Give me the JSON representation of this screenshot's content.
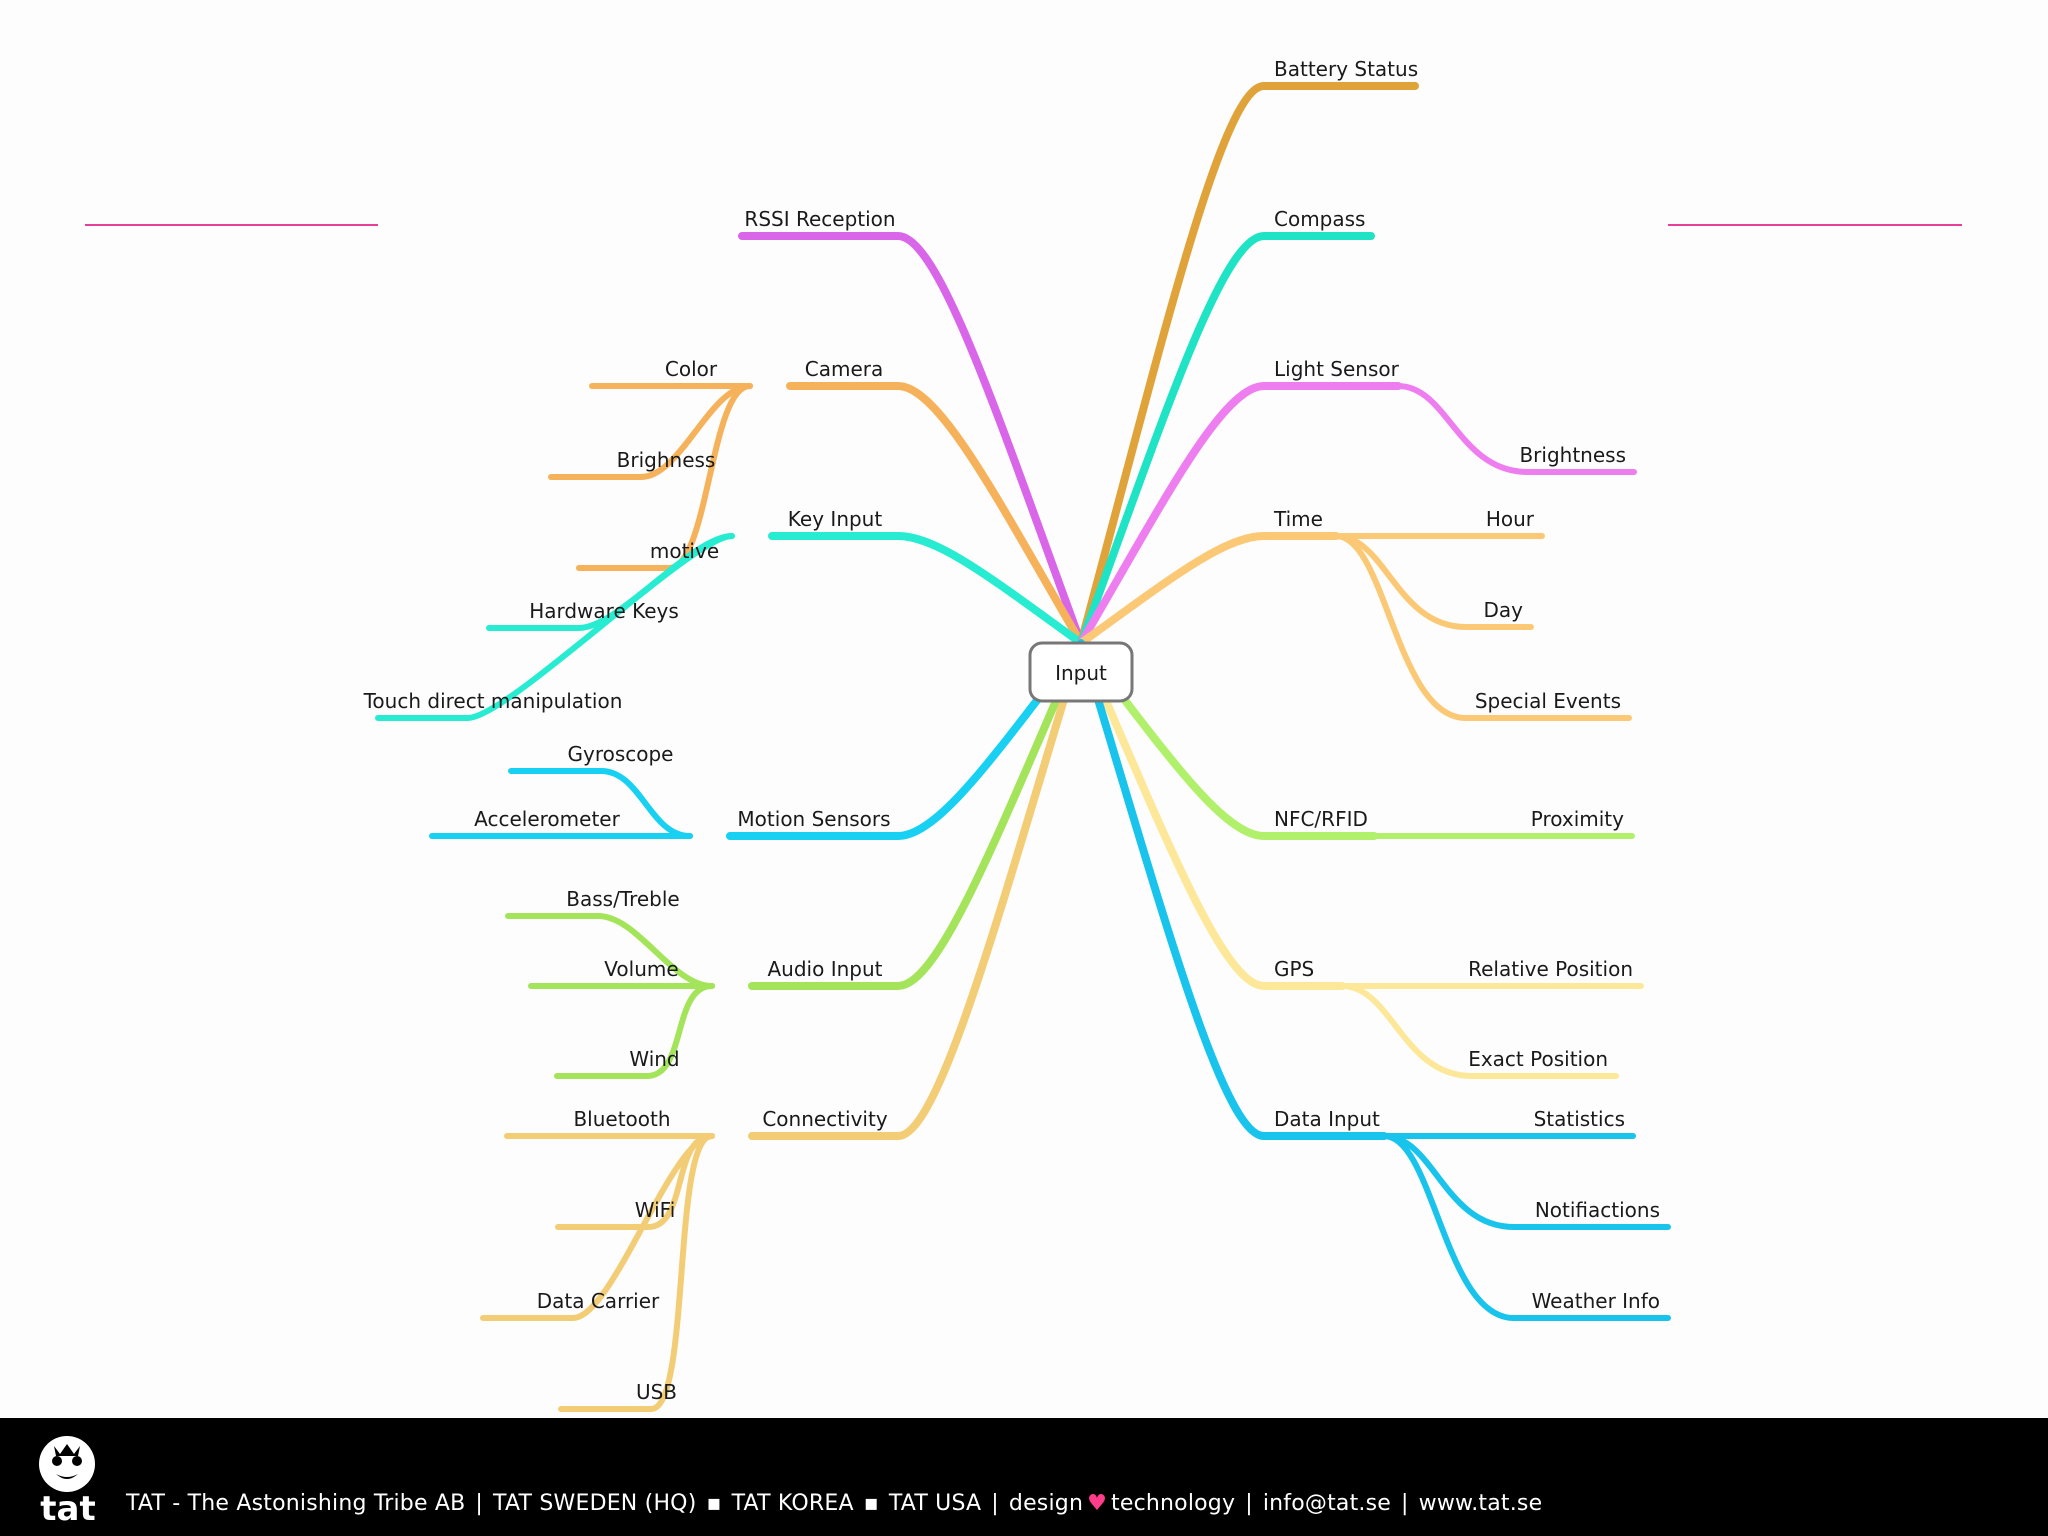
{
  "colors": {
    "pink_rule": "#e8409a",
    "root_border": "#777777",
    "heart": "#ff3d8b"
  },
  "mindmap": {
    "root": "Input",
    "left": [
      {
        "id": "rssi",
        "label": "RSSI Reception",
        "color": "#d966e8",
        "children": []
      },
      {
        "id": "camera",
        "label": "Camera",
        "color": "#f6b25a",
        "children": [
          "Color",
          "Brighness",
          "motive"
        ]
      },
      {
        "id": "keyinput",
        "label": "Key Input",
        "color": "#27ecd2",
        "children": [
          "Hardware Keys",
          "Touch direct manipulation"
        ]
      },
      {
        "id": "motion",
        "label": "Motion Sensors",
        "color": "#18d0f2",
        "children": [
          "Gyroscope",
          "Accelerometer"
        ]
      },
      {
        "id": "audio",
        "label": "Audio Input",
        "color": "#a3e45a",
        "children": [
          "Bass/Treble",
          "Volume",
          "Wind"
        ]
      },
      {
        "id": "connectivity",
        "label": "Connectivity",
        "color": "#f3cd76",
        "children": [
          "Bluetooth",
          "WiFi",
          "Data Carrier",
          "USB"
        ]
      }
    ],
    "right": [
      {
        "id": "battery",
        "label": "Battery Status",
        "color": "#e0a33a",
        "children": []
      },
      {
        "id": "compass",
        "label": "Compass",
        "color": "#1ee3c4",
        "children": []
      },
      {
        "id": "light",
        "label": "Light Sensor",
        "color": "#ee7ef0",
        "children": [
          "Brightness"
        ]
      },
      {
        "id": "time",
        "label": "Time",
        "color": "#fbc976",
        "children": [
          "Hour",
          "Day",
          "Special Events"
        ]
      },
      {
        "id": "nfc",
        "label": "NFC/RFID",
        "color": "#b0f06a",
        "children": [
          "Proximity"
        ]
      },
      {
        "id": "gps",
        "label": "GPS",
        "color": "#fde89a",
        "children": [
          "Relative Position",
          "Exact Position"
        ]
      },
      {
        "id": "datainput",
        "label": "Data Input",
        "color": "#18c3ec",
        "children": [
          "Statistics",
          "Notifiactions",
          "Weather Info"
        ]
      }
    ]
  },
  "footer": {
    "logo_text": "tat",
    "company": "TAT - The Astonishing Tribe AB",
    "sweden": "TAT  SWEDEN (HQ)",
    "korea": "TAT  KOREA",
    "usa": "TAT  USA",
    "design": "design",
    "technology": "technology",
    "email": "info@tat.se",
    "web": "www.tat.se"
  }
}
